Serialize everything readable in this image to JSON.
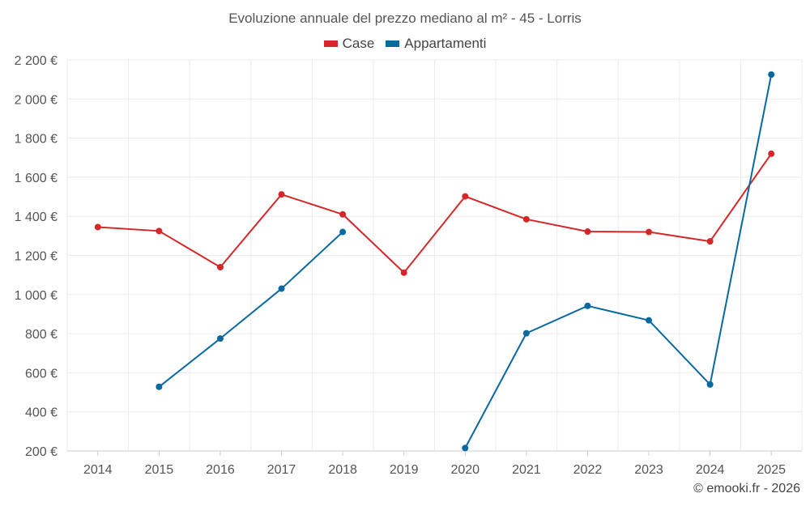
{
  "chart_data": {
    "type": "line",
    "title": "Evoluzione annuale del prezzo mediano al m² - 45 - Lorris",
    "xlabel": "",
    "ylabel": "",
    "categories": [
      "2014",
      "2015",
      "2016",
      "2017",
      "2018",
      "2019",
      "2020",
      "2021",
      "2022",
      "2023",
      "2024",
      "2025"
    ],
    "ylim": [
      200,
      2200
    ],
    "yticks": [
      200,
      400,
      600,
      800,
      1000,
      1200,
      1400,
      1600,
      1800,
      2000,
      2200
    ],
    "ytick_labels": [
      "200 €",
      "400 €",
      "600 €",
      "800 €",
      "1 000 €",
      "1 200 €",
      "1 400 €",
      "1 600 €",
      "1 800 €",
      "2 000 €",
      "2 200 €"
    ],
    "grid": true,
    "legend_position": "top-center",
    "series": [
      {
        "name": "Case",
        "color": "#d62728",
        "values": [
          1345,
          1325,
          1140,
          1512,
          1410,
          1112,
          1502,
          1385,
          1322,
          1320,
          1272,
          1720
        ]
      },
      {
        "name": "Appartamenti",
        "color": "#0868a0",
        "values": [
          null,
          528,
          775,
          1030,
          1320,
          null,
          215,
          802,
          942,
          868,
          540,
          2125
        ]
      }
    ]
  },
  "footer": "© emooki.fr - 2026"
}
